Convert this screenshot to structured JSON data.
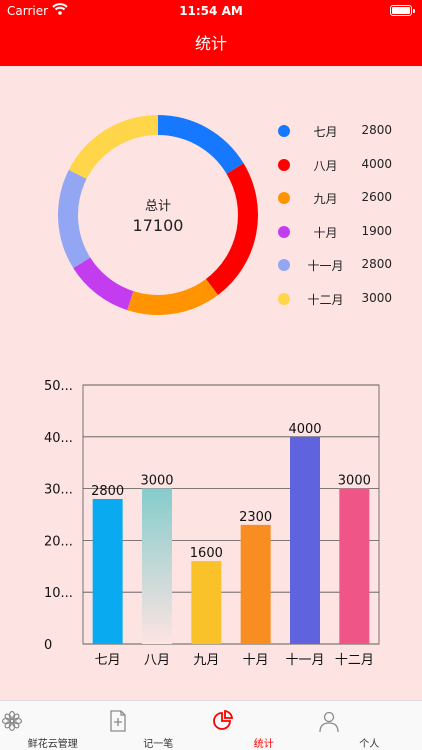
{
  "statusbar": {
    "carrier": "Carrier",
    "time": "11:54 AM"
  },
  "navbar": {
    "title": "统计"
  },
  "summary": {
    "label": "总计",
    "total": "17100"
  },
  "legend": [
    {
      "name": "七月",
      "value": "2800",
      "color": "#1677ff"
    },
    {
      "name": "八月",
      "value": "4000",
      "color": "#ff0000"
    },
    {
      "name": "九月",
      "value": "2600",
      "color": "#ff9400"
    },
    {
      "name": "十月",
      "value": "1900",
      "color": "#c43cf0"
    },
    {
      "name": "十一月",
      "value": "2800",
      "color": "#93a6f3"
    },
    {
      "name": "十二月",
      "value": "3000",
      "color": "#ffd54a"
    }
  ],
  "chart_data": [
    {
      "type": "pie",
      "categories": [
        "七月",
        "八月",
        "九月",
        "十月",
        "十一月",
        "十二月"
      ],
      "values": [
        2800,
        4000,
        2600,
        1900,
        2800,
        3000
      ],
      "colors": [
        "#1677ff",
        "#ff0000",
        "#ff9400",
        "#c43cf0",
        "#93a6f3",
        "#ffd54a"
      ]
    },
    {
      "type": "bar",
      "categories": [
        "七月",
        "八月",
        "九月",
        "十月",
        "十一月",
        "十二月"
      ],
      "values": [
        2800,
        3000,
        1600,
        2300,
        4000,
        3000
      ],
      "value_labels": [
        "2800",
        "3000",
        "1600",
        "2300",
        "4000",
        "3000"
      ],
      "colors": [
        "#0aaaf0",
        "#86cccc",
        "#fac22a",
        "#f88e22",
        "#5f64de",
        "#ef5587"
      ],
      "yticks": [
        "0",
        "10...",
        "20...",
        "30...",
        "40...",
        "50..."
      ],
      "ylim": [
        0,
        5000
      ],
      "grid": true
    }
  ],
  "tabs": [
    {
      "label": "鲜花云管理",
      "icon": "flower-icon"
    },
    {
      "label": "记一笔",
      "icon": "note-add-icon"
    },
    {
      "label": "统计",
      "icon": "pie-chart-icon",
      "active": true
    },
    {
      "label": "个人",
      "icon": "person-icon"
    }
  ]
}
